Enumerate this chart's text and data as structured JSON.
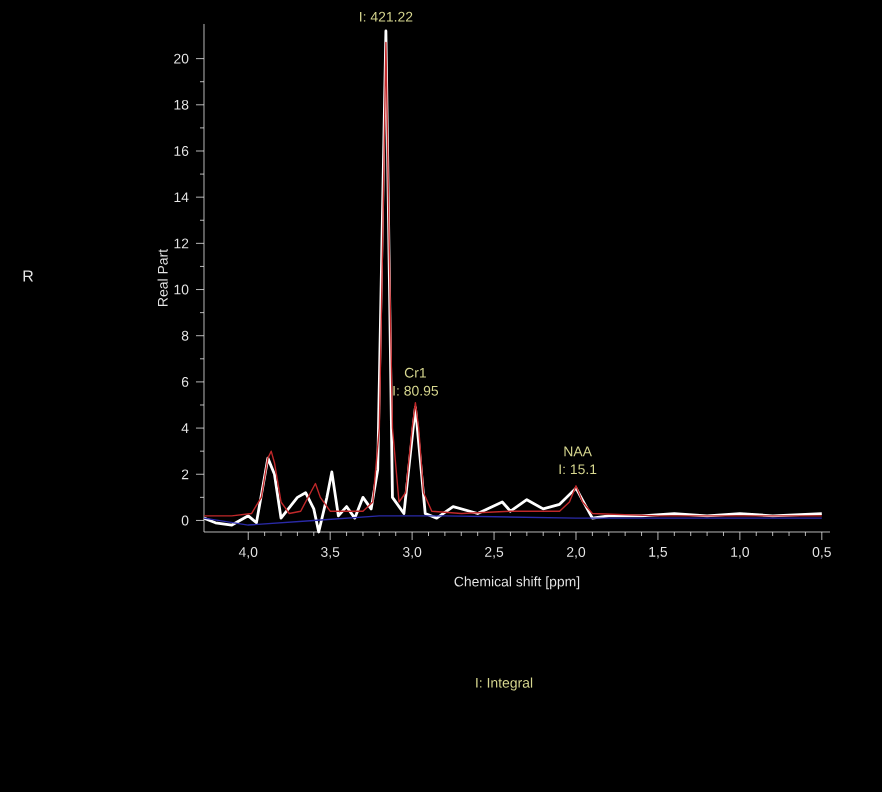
{
  "chart_data": {
    "type": "line",
    "xlabel": "Chemical shift [ppm]",
    "ylabel": "Real Part",
    "xlim": [
      4.27,
      0.45
    ],
    "ylim": [
      -0.5,
      21.5
    ],
    "xticks": [
      {
        "value": 4.0,
        "label": "4,0"
      },
      {
        "value": 3.5,
        "label": "3,5"
      },
      {
        "value": 3.0,
        "label": "3,0"
      },
      {
        "value": 2.5,
        "label": "2,5"
      },
      {
        "value": 2.0,
        "label": "2,0"
      },
      {
        "value": 1.5,
        "label": "1,5"
      },
      {
        "value": 1.0,
        "label": "1,0"
      },
      {
        "value": 0.5,
        "label": "0,5"
      }
    ],
    "yticks": [
      0,
      2,
      4,
      6,
      8,
      10,
      12,
      14,
      16,
      18,
      20
    ],
    "grid": false,
    "marker": "none",
    "line_style": "solid",
    "series": [
      {
        "color": "#ffffff",
        "x": [
          4.27,
          4.2,
          4.1,
          4.0,
          3.95,
          3.88,
          3.84,
          3.8,
          3.7,
          3.65,
          3.6,
          3.57,
          3.52,
          3.49,
          3.45,
          3.4,
          3.35,
          3.3,
          3.25,
          3.21,
          3.16,
          3.12,
          3.05,
          2.98,
          2.92,
          2.85,
          2.75,
          2.6,
          2.45,
          2.4,
          2.3,
          2.2,
          2.1,
          2.0,
          1.9,
          1.8,
          1.6,
          1.4,
          1.2,
          1.0,
          0.8,
          0.5
        ],
        "values": [
          0.1,
          -0.1,
          -0.2,
          0.2,
          -0.1,
          2.7,
          2.0,
          0.1,
          1.0,
          1.2,
          0.5,
          -0.5,
          1.0,
          2.1,
          0.2,
          0.6,
          0.1,
          1.0,
          0.5,
          2.2,
          21.2,
          1.0,
          0.3,
          4.9,
          0.3,
          0.1,
          0.6,
          0.3,
          0.8,
          0.4,
          0.9,
          0.5,
          0.7,
          1.4,
          0.1,
          0.2,
          0.2,
          0.3,
          0.2,
          0.3,
          0.2,
          0.3
        ]
      },
      {
        "color": "#2a2aa8",
        "x": [
          4.27,
          4.0,
          3.6,
          3.2,
          2.8,
          2.0,
          1.0,
          0.5
        ],
        "values": [
          0.1,
          -0.2,
          0.0,
          0.2,
          0.2,
          0.1,
          0.1,
          0.1
        ]
      },
      {
        "color": "#c0282a",
        "x": [
          4.27,
          4.1,
          3.98,
          3.92,
          3.88,
          3.86,
          3.84,
          3.8,
          3.75,
          3.68,
          3.62,
          3.59,
          3.56,
          3.5,
          3.4,
          3.3,
          3.24,
          3.2,
          3.18,
          3.16,
          3.14,
          3.12,
          3.08,
          3.04,
          3.0,
          2.98,
          2.96,
          2.93,
          2.88,
          2.7,
          2.4,
          2.1,
          2.04,
          2.0,
          1.96,
          1.9,
          1.5,
          1.0,
          0.5
        ],
        "values": [
          0.2,
          0.2,
          0.3,
          1.0,
          2.7,
          3.0,
          2.5,
          0.8,
          0.3,
          0.4,
          1.2,
          1.6,
          1.0,
          0.4,
          0.4,
          0.4,
          0.8,
          4.0,
          12.0,
          20.7,
          12.0,
          4.0,
          0.8,
          1.2,
          4.0,
          5.1,
          4.0,
          1.2,
          0.4,
          0.3,
          0.4,
          0.4,
          0.8,
          1.5,
          0.8,
          0.3,
          0.2,
          0.2,
          0.2
        ]
      }
    ],
    "annotations": [
      {
        "text": "I: 421.22",
        "x": 3.16,
        "y": 21.5
      },
      "Cr1",
      {
        "text": "I: 80.95",
        "x": 2.98,
        "y": 5.3
      },
      "NAA",
      {
        "text": "I: 15.1",
        "x": 1.99,
        "y": 1.9
      },
      "R",
      "I: Integral"
    ]
  }
}
